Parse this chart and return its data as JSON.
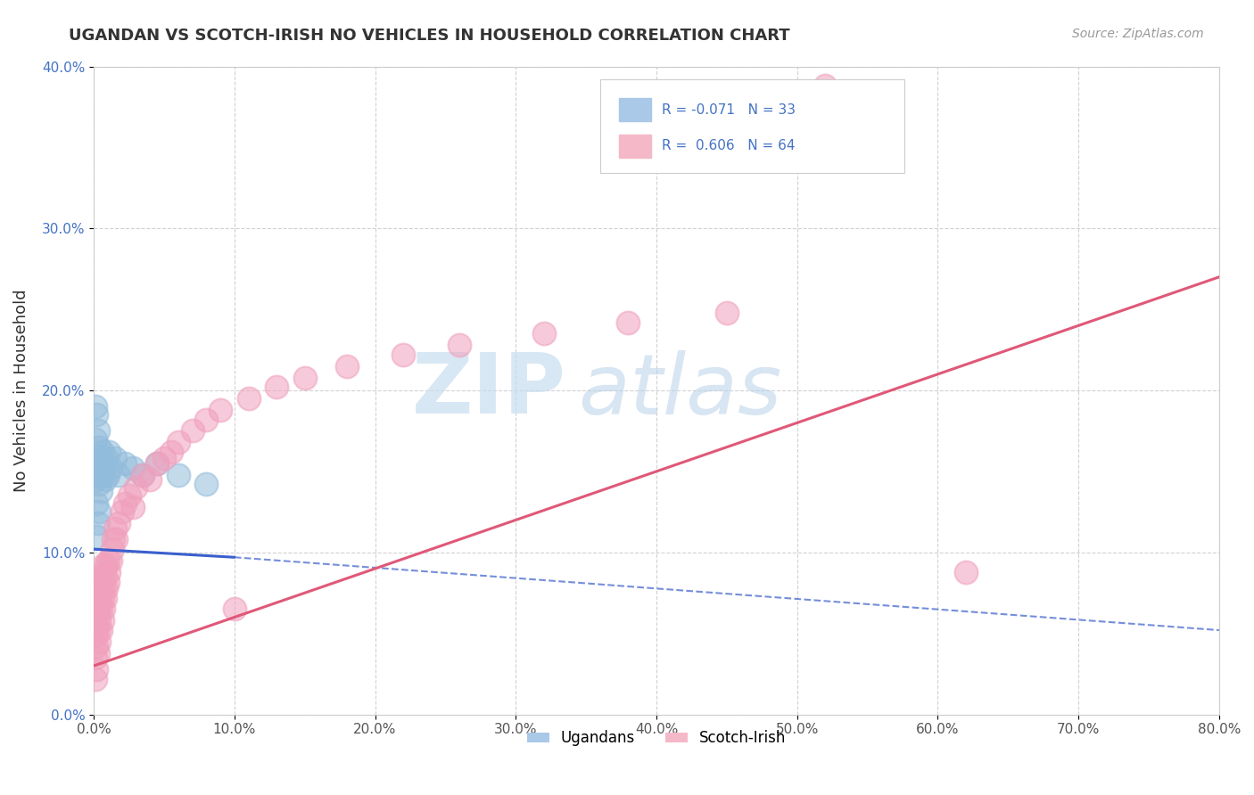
{
  "title": "UGANDAN VS SCOTCH-IRISH NO VEHICLES IN HOUSEHOLD CORRELATION CHART",
  "source_text": "Source: ZipAtlas.com",
  "ylabel": "No Vehicles in Household",
  "xlim": [
    0.0,
    0.8
  ],
  "ylim": [
    0.0,
    0.4
  ],
  "xticks": [
    0.0,
    0.1,
    0.2,
    0.3,
    0.4,
    0.5,
    0.6,
    0.7,
    0.8
  ],
  "xticklabels": [
    "0.0%",
    "10.0%",
    "20.0%",
    "30.0%",
    "40.0%",
    "50.0%",
    "60.0%",
    "70.0%",
    "80.0%"
  ],
  "yticks": [
    0.0,
    0.1,
    0.2,
    0.3,
    0.4
  ],
  "yticklabels": [
    "0.0%",
    "10.0%",
    "20.0%",
    "30.0%",
    "40.0%"
  ],
  "ugandan_color": "#92bcdb",
  "scotch_irish_color": "#f0a0bc",
  "ugandan_line_color": "#3a5fcd",
  "scotch_irish_line_color": "#e05878",
  "watermark_zip": "ZIP",
  "watermark_atlas": "atlas",
  "background_color": "#ffffff",
  "ugandan_points": [
    [
      0.001,
      0.19
    ],
    [
      0.001,
      0.17
    ],
    [
      0.001,
      0.155
    ],
    [
      0.001,
      0.145
    ],
    [
      0.002,
      0.185
    ],
    [
      0.002,
      0.15
    ],
    [
      0.002,
      0.13
    ],
    [
      0.002,
      0.11
    ],
    [
      0.003,
      0.175
    ],
    [
      0.003,
      0.16
    ],
    [
      0.003,
      0.148
    ],
    [
      0.003,
      0.118
    ],
    [
      0.004,
      0.165
    ],
    [
      0.004,
      0.142
    ],
    [
      0.004,
      0.125
    ],
    [
      0.005,
      0.155
    ],
    [
      0.005,
      0.138
    ],
    [
      0.006,
      0.162
    ],
    [
      0.006,
      0.148
    ],
    [
      0.007,
      0.155
    ],
    [
      0.008,
      0.145
    ],
    [
      0.009,
      0.158
    ],
    [
      0.01,
      0.148
    ],
    [
      0.011,
      0.162
    ],
    [
      0.012,
      0.152
    ],
    [
      0.015,
      0.158
    ],
    [
      0.018,
      0.148
    ],
    [
      0.022,
      0.155
    ],
    [
      0.028,
      0.152
    ],
    [
      0.035,
      0.148
    ],
    [
      0.045,
      0.155
    ],
    [
      0.06,
      0.148
    ],
    [
      0.08,
      0.142
    ]
  ],
  "scotch_irish_points": [
    [
      0.001,
      0.022
    ],
    [
      0.001,
      0.035
    ],
    [
      0.001,
      0.048
    ],
    [
      0.001,
      0.062
    ],
    [
      0.002,
      0.028
    ],
    [
      0.002,
      0.042
    ],
    [
      0.002,
      0.055
    ],
    [
      0.002,
      0.07
    ],
    [
      0.003,
      0.038
    ],
    [
      0.003,
      0.052
    ],
    [
      0.003,
      0.065
    ],
    [
      0.003,
      0.08
    ],
    [
      0.004,
      0.045
    ],
    [
      0.004,
      0.058
    ],
    [
      0.004,
      0.072
    ],
    [
      0.004,
      0.085
    ],
    [
      0.005,
      0.052
    ],
    [
      0.005,
      0.065
    ],
    [
      0.005,
      0.078
    ],
    [
      0.006,
      0.058
    ],
    [
      0.006,
      0.072
    ],
    [
      0.006,
      0.085
    ],
    [
      0.007,
      0.065
    ],
    [
      0.007,
      0.078
    ],
    [
      0.007,
      0.092
    ],
    [
      0.008,
      0.072
    ],
    [
      0.008,
      0.085
    ],
    [
      0.009,
      0.078
    ],
    [
      0.009,
      0.092
    ],
    [
      0.01,
      0.082
    ],
    [
      0.01,
      0.095
    ],
    [
      0.011,
      0.088
    ],
    [
      0.012,
      0.095
    ],
    [
      0.013,
      0.102
    ],
    [
      0.014,
      0.108
    ],
    [
      0.015,
      0.115
    ],
    [
      0.016,
      0.108
    ],
    [
      0.018,
      0.118
    ],
    [
      0.02,
      0.125
    ],
    [
      0.022,
      0.13
    ],
    [
      0.025,
      0.135
    ],
    [
      0.028,
      0.128
    ],
    [
      0.03,
      0.14
    ],
    [
      0.035,
      0.148
    ],
    [
      0.04,
      0.145
    ],
    [
      0.045,
      0.155
    ],
    [
      0.05,
      0.158
    ],
    [
      0.055,
      0.162
    ],
    [
      0.06,
      0.168
    ],
    [
      0.07,
      0.175
    ],
    [
      0.08,
      0.182
    ],
    [
      0.09,
      0.188
    ],
    [
      0.1,
      0.065
    ],
    [
      0.11,
      0.195
    ],
    [
      0.13,
      0.202
    ],
    [
      0.15,
      0.208
    ],
    [
      0.18,
      0.215
    ],
    [
      0.22,
      0.222
    ],
    [
      0.26,
      0.228
    ],
    [
      0.32,
      0.235
    ],
    [
      0.38,
      0.242
    ],
    [
      0.45,
      0.248
    ],
    [
      0.52,
      0.388
    ],
    [
      0.62,
      0.088
    ]
  ]
}
